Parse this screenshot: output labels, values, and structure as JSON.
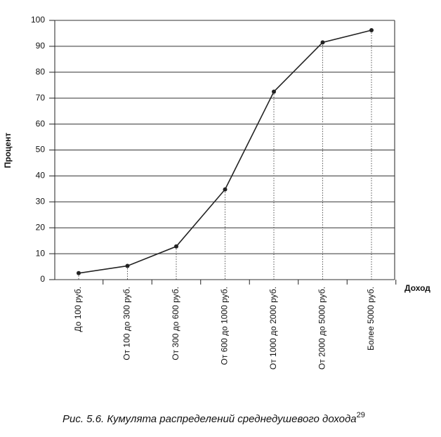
{
  "chart_data": {
    "type": "line",
    "y_label": "Процент",
    "x_label": "Доход",
    "caption": "Рис. 5.6. Кумулята распределений среднедушевого дохода",
    "caption_note": "29",
    "categories": [
      "До 100 руб.",
      "От 100 до 300 руб.",
      "От 300 до 600 руб.",
      "От 600 до 1000 руб.",
      "От 1000 до 2000 руб.",
      "От 2000 до 5000 руб.",
      "Более 5000 руб."
    ],
    "values": [
      2.5,
      5.3,
      12.8,
      34.8,
      72.5,
      91.5,
      96.2
    ],
    "color": "#222",
    "ylim": [
      0,
      100
    ],
    "yticks": [
      0,
      10,
      20,
      30,
      40,
      50,
      60,
      70,
      80,
      90,
      100
    ],
    "grid": true
  }
}
